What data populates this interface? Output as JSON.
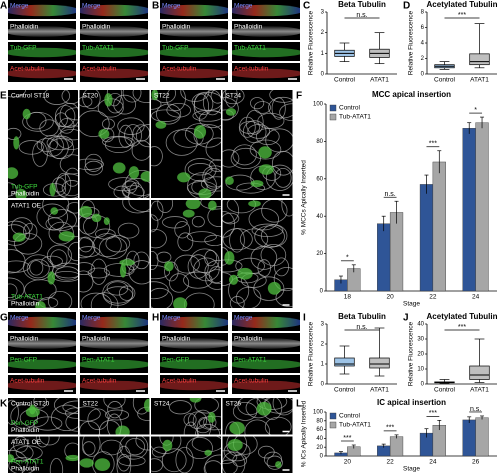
{
  "strip_panels": [
    {
      "letter": "A",
      "left": [
        "Merge",
        "Phalloidin",
        "Tub-GFP",
        "Acet-tubulin"
      ],
      "right": [
        "Merge",
        "Phalloidin",
        "Tub-ATAT1",
        "Acet-tubulin"
      ]
    },
    {
      "letter": "B",
      "left": [
        "Merge",
        "Phalloidin",
        "Tub-GFP",
        "Acet-tubulin"
      ],
      "right": [
        "Merge",
        "Phalloidin",
        "Tub-ATAT1",
        "Acet-tubulin"
      ]
    },
    {
      "letter": "G",
      "left": [
        "Merge",
        "Phalloidin",
        "Pen-GFP",
        "Acet-tubulin"
      ],
      "right": [
        "Merge",
        "Phalloidin",
        "Pen-ATAT1",
        "Acet-tubulin"
      ]
    },
    {
      "letter": "H",
      "left": [
        "Merge",
        "Phalloidin",
        "Pen-GFP",
        "Acet-tubulin"
      ],
      "right": [
        "Merge",
        "Phalloidin",
        "Pen-ATAT1",
        "Acet-tubulin"
      ]
    }
  ],
  "grid_panels": [
    {
      "letter": "E",
      "header": [
        "Control ST18",
        "ST20",
        "ST22",
        "ST24"
      ],
      "row1_channels": [
        "Tub-GFP",
        "Phalloidin"
      ],
      "row2_title": "ATAT1 OE",
      "row2_channels": [
        "Tub-ATAT1",
        "Phalloidin"
      ]
    },
    {
      "letter": "K",
      "header": [
        "Control ST20",
        "ST22",
        "ST24",
        "ST26"
      ],
      "row1_channels": [
        "Pen-GFP",
        "Phalloidin"
      ],
      "row2_title": "ATAT1 OE",
      "row2_channels": [
        "Pen-ATAT1",
        "Phalloidin"
      ]
    }
  ],
  "chart_data": [
    {
      "type": "box",
      "letter": "C",
      "title": "Beta Tubulin",
      "ylabel": "Relative Fluorescence",
      "categories": [
        "Control",
        "ATAT1"
      ],
      "colors": [
        "#9dc3e6",
        "#bfbfbf"
      ],
      "boxes": [
        {
          "min": 0.6,
          "q1": 0.85,
          "median": 1.0,
          "q3": 1.15,
          "max": 1.5
        },
        {
          "min": 0.5,
          "q1": 0.8,
          "median": 1.0,
          "q3": 1.2,
          "max": 2.0
        }
      ],
      "annotation": "n.s.",
      "ylim": [
        0,
        3
      ],
      "yticks": [
        0,
        1,
        2,
        3
      ]
    },
    {
      "type": "box",
      "letter": "D",
      "title": "Acetylated Tubulin",
      "ylabel": "Relative Fluorescence",
      "categories": [
        "Control",
        "ATAT1"
      ],
      "colors": [
        "#9dc3e6",
        "#bfbfbf"
      ],
      "boxes": [
        {
          "min": 0.6,
          "q1": 0.8,
          "median": 1.0,
          "q3": 1.2,
          "max": 1.6
        },
        {
          "min": 0.8,
          "q1": 1.2,
          "median": 1.6,
          "q3": 2.6,
          "max": 6.5
        }
      ],
      "annotation": "***",
      "ylim": [
        0,
        8
      ],
      "yticks": [
        0,
        2,
        4,
        6,
        8
      ]
    },
    {
      "type": "bar",
      "letter": "F",
      "title": "MCC apical insertion",
      "xlabel": "Stage",
      "ylabel": "% MCCs Apically Inserted",
      "categories": [
        "18",
        "20",
        "22",
        "24"
      ],
      "series": [
        {
          "name": "Control",
          "color": "#2f5597",
          "values": [
            6,
            36,
            57,
            87
          ],
          "errors": [
            2,
            4,
            5,
            3
          ]
        },
        {
          "name": "Tub-ATAT1",
          "color": "#a6a6a6",
          "values": [
            12,
            42,
            69,
            90
          ],
          "errors": [
            2,
            6,
            6,
            3
          ]
        }
      ],
      "annotations": [
        "*",
        "n.s.",
        "***",
        "*"
      ],
      "ylim": [
        0,
        100
      ],
      "yticks": [
        0,
        20,
        40,
        60,
        80,
        100
      ]
    },
    {
      "type": "box",
      "letter": "I",
      "title": "Beta Tubulin",
      "ylabel": "Relative Fluorescence",
      "categories": [
        "Control",
        "ATAT1"
      ],
      "colors": [
        "#9dc3e6",
        "#bfbfbf"
      ],
      "boxes": [
        {
          "min": 0.5,
          "q1": 0.9,
          "median": 1.0,
          "q3": 1.3,
          "max": 1.9
        },
        {
          "min": 0.4,
          "q1": 0.8,
          "median": 1.0,
          "q3": 1.3,
          "max": 2.8
        }
      ],
      "annotation": "n.s.",
      "ylim": [
        0,
        3
      ],
      "yticks": [
        0,
        1,
        2,
        3
      ]
    },
    {
      "type": "box",
      "letter": "J",
      "title": "Acetylated Tubulin",
      "ylabel": "Relative Fluorescence",
      "categories": [
        "Control",
        "ATAT1"
      ],
      "colors": [
        "#9dc3e6",
        "#bfbfbf"
      ],
      "boxes": [
        {
          "min": 0.5,
          "q1": 0.8,
          "median": 1.0,
          "q3": 1.4,
          "max": 3
        },
        {
          "min": 1,
          "q1": 3,
          "median": 6,
          "q3": 12,
          "max": 30
        }
      ],
      "annotation": "***",
      "ylim": [
        0,
        40
      ],
      "yticks": [
        0,
        10,
        20,
        30,
        40
      ]
    },
    {
      "type": "bar",
      "letter": "L",
      "title": "IC apical insertion",
      "xlabel": "Stage",
      "ylabel": "% ICs Apically Inserted",
      "categories": [
        "20",
        "22",
        "24",
        "26"
      ],
      "series": [
        {
          "name": "Control",
          "color": "#2f5597",
          "values": [
            7,
            23,
            52,
            82
          ],
          "errors": [
            3,
            4,
            10,
            7
          ]
        },
        {
          "name": "Tub-ATAT1",
          "color": "#a6a6a6",
          "values": [
            21,
            44,
            70,
            87
          ],
          "errors": [
            4,
            4,
            11,
            4
          ]
        }
      ],
      "annotations": [
        "***",
        "***",
        "***",
        "n.s."
      ],
      "ylim": [
        0,
        100
      ],
      "yticks": [
        0,
        20,
        40,
        60,
        80,
        100
      ]
    }
  ]
}
